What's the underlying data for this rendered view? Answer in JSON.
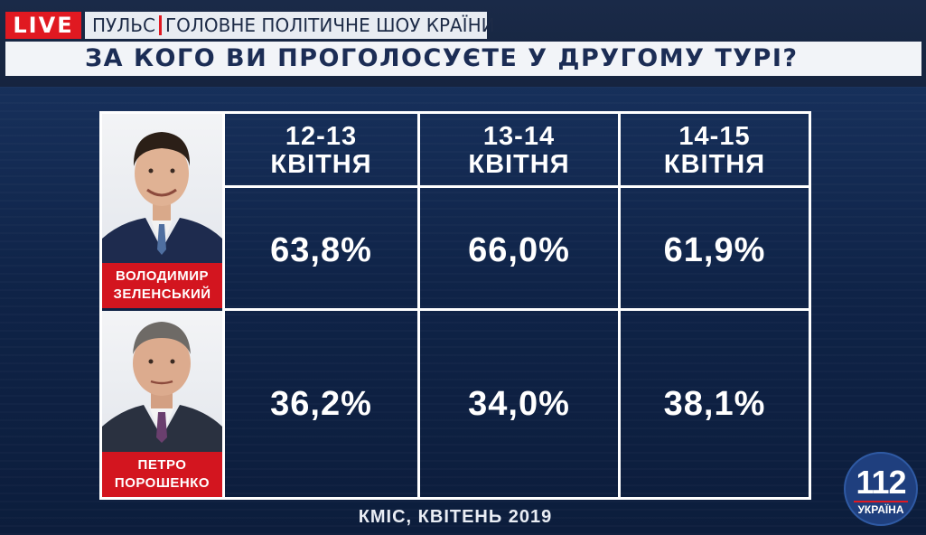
{
  "header": {
    "live_label": "LIVE",
    "show_name": "ПУЛЬС",
    "show_tagline": "ГОЛОВНЕ ПОЛІТИЧНЕ ШОУ КРАЇНИ",
    "question": "ЗА КОГО ВИ ПРОГОЛОСУЄТЕ У ДРУГОМУ ТУРІ?"
  },
  "table": {
    "columns": [
      {
        "line1": "12-13",
        "line2": "КВІТНЯ"
      },
      {
        "line1": "13-14",
        "line2": "КВІТНЯ"
      },
      {
        "line1": "14-15",
        "line2": "КВІТНЯ"
      }
    ],
    "candidates": [
      {
        "name_line1": "ВОЛОДИМИР",
        "name_line2": "ЗЕЛЕНСЬКИЙ",
        "values": [
          "63,8%",
          "66,0%",
          "61,9%"
        ]
      },
      {
        "name_line1": "ПЕТРО",
        "name_line2": "ПОРОШЕНКО",
        "values": [
          "36,2%",
          "34,0%",
          "38,1%"
        ]
      }
    ]
  },
  "source": "КМІС, КВІТЕНЬ 2019",
  "logo": {
    "number": "112",
    "text": "УКРАЇНА"
  },
  "colors": {
    "accent_red": "#e01921",
    "background_navy": "#13294f",
    "text_navy": "#1c2d55"
  }
}
